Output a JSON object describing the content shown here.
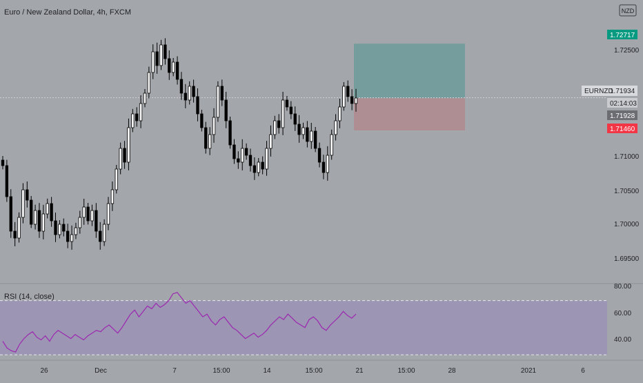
{
  "header": {
    "title": "Euro / New Zealand Dollar, 4h, FXCM",
    "currency_badge": "NZD"
  },
  "rsi_panel": {
    "label": "RSI (14, close)",
    "y_ticks": [
      "80.00",
      "60.00",
      "40.00"
    ]
  },
  "price_scale": {
    "ticks": [
      "1.72500",
      "1.71000",
      "1.70500",
      "1.70000",
      "1.69500"
    ],
    "labels": {
      "target": "1.72717",
      "symbol": "EURNZD",
      "last": "1.71934",
      "countdown": "02:14:03",
      "entry": "1.71928",
      "stop": "1.71460"
    }
  },
  "time_axis": {
    "labels": [
      "26",
      "Dec",
      "7",
      "15:00",
      "14",
      "15:00",
      "21",
      "15:00",
      "28",
      "2021",
      "6"
    ]
  },
  "colors": {
    "background": "#a3a6aa",
    "candle_up": "#ffffff",
    "candle_down": "#000000",
    "profit_zone": "#6f9b9b",
    "loss_zone": "#b08a8e",
    "rsi_line": "#9c27b0",
    "rsi_band": "#9a8fb5",
    "target_label": "#089981",
    "stop_label": "#f23645",
    "entry_label": "#6b6d72"
  },
  "chart_data": {
    "type": "candlestick",
    "symbol": "EURNZD",
    "timeframe": "4h",
    "source": "FXCM",
    "ylim": [
      1.6925,
      1.7335
    ],
    "x_axis_labels": [
      "26",
      "Dec",
      "7",
      "15:00",
      "14",
      "15:00",
      "21",
      "15:00",
      "28",
      "2021",
      "6"
    ],
    "close_series_approx": [
      1.7095,
      1.705,
      1.7,
      1.699,
      1.702,
      1.706,
      1.7045,
      1.701,
      1.703,
      1.7,
      1.7025,
      1.704,
      1.7015,
      1.6995,
      1.701,
      1.7,
      1.6985,
      1.6995,
      1.7005,
      1.702,
      1.7035,
      1.7015,
      1.703,
      1.7,
      1.6985,
      1.701,
      1.704,
      1.706,
      1.709,
      1.712,
      1.71,
      1.715,
      1.717,
      1.716,
      1.7185,
      1.72,
      1.723,
      1.726,
      1.724,
      1.727,
      1.725,
      1.723,
      1.7245,
      1.722,
      1.72,
      1.719,
      1.721,
      1.7195,
      1.717,
      1.715,
      1.712,
      1.714,
      1.7165,
      1.721,
      1.719,
      1.716,
      1.7125,
      1.7105,
      1.71,
      1.712,
      1.711,
      1.7095,
      1.7085,
      1.71,
      1.709,
      1.712,
      1.714,
      1.716,
      1.715,
      1.719,
      1.718,
      1.717,
      1.7155,
      1.714,
      1.715,
      1.713,
      1.7145,
      1.712,
      1.71,
      1.7085,
      1.711,
      1.714,
      1.716,
      1.718,
      1.721,
      1.7195,
      1.7185,
      1.7193
    ],
    "last_price": 1.71934,
    "position": {
      "entry": 1.71928,
      "target": 1.72717,
      "stop": 1.7146
    },
    "rsi": {
      "period": 14,
      "source": "close",
      "ylim": [
        30,
        80
      ],
      "bands": [
        70,
        30
      ],
      "values_approx": [
        40,
        35,
        33,
        32,
        38,
        42,
        45,
        47,
        43,
        41,
        44,
        40,
        45,
        48,
        46,
        44,
        42,
        45,
        43,
        41,
        44,
        46,
        48,
        47,
        50,
        52,
        49,
        46,
        50,
        55,
        60,
        63,
        58,
        62,
        66,
        64,
        68,
        65,
        67,
        70,
        75,
        76,
        72,
        68,
        70,
        66,
        62,
        58,
        60,
        55,
        52,
        56,
        58,
        54,
        50,
        48,
        45,
        42,
        44,
        46,
        43,
        45,
        48,
        52,
        55,
        58,
        56,
        60,
        57,
        54,
        52,
        50,
        56,
        58,
        55,
        50,
        48,
        52,
        55,
        58,
        62,
        59,
        57,
        60
      ]
    }
  }
}
